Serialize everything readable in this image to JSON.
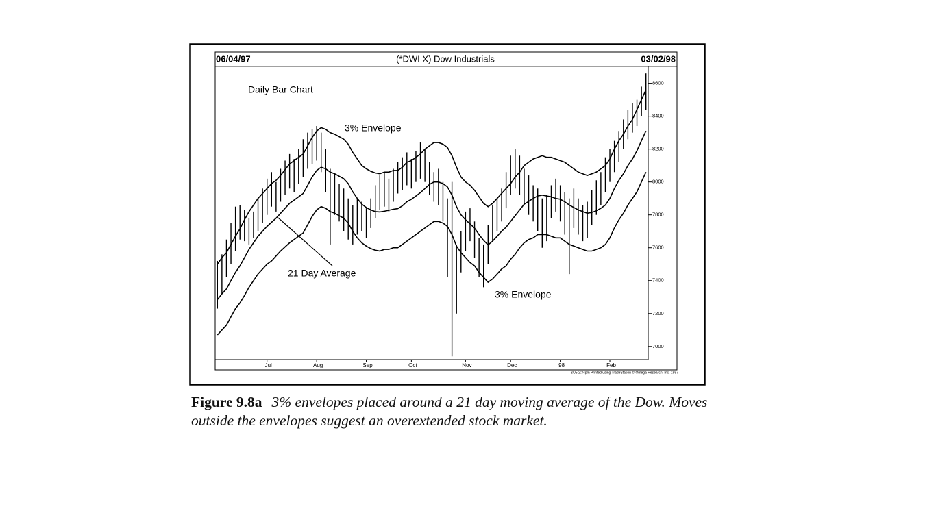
{
  "chart_data": {
    "type": "ohlc",
    "title": "(*DWI X) Dow Industrials",
    "start_date": "06/04/97",
    "end_date": "03/02/98",
    "subtitle": "Daily Bar Chart",
    "footer": "3/05 2:34pm Printed using TradeStation © Omega Research, Inc. 1997",
    "color": "#000000",
    "categories": [
      null,
      null,
      null,
      null,
      null,
      null,
      null,
      null,
      null,
      null,
      null,
      "Jul",
      null,
      null,
      null,
      null,
      null,
      null,
      null,
      null,
      null,
      null,
      "Aug",
      null,
      null,
      null,
      null,
      null,
      null,
      null,
      null,
      null,
      null,
      "Sep",
      null,
      null,
      null,
      null,
      null,
      null,
      null,
      null,
      null,
      "Oct",
      null,
      null,
      null,
      null,
      null,
      null,
      null,
      null,
      null,
      null,
      null,
      "Nov",
      null,
      null,
      null,
      null,
      null,
      null,
      null,
      null,
      null,
      "Dec",
      null,
      null,
      null,
      null,
      null,
      null,
      null,
      null,
      null,
      null,
      "98",
      null,
      null,
      null,
      null,
      null,
      null,
      null,
      null,
      null,
      null,
      "Feb",
      null,
      null,
      null,
      null,
      null,
      null,
      null,
      null
    ],
    "high": [
      7520,
      7560,
      7650,
      7750,
      7850,
      7860,
      7830,
      7780,
      7820,
      7900,
      7960,
      8020,
      8060,
      8000,
      8080,
      8130,
      8170,
      8140,
      8200,
      8260,
      8300,
      8320,
      8340,
      8300,
      8200,
      8080,
      8050,
      7990,
      7960,
      7900,
      7860,
      7900,
      7880,
      7840,
      7900,
      7980,
      8040,
      8060,
      8020,
      8080,
      8120,
      8150,
      8180,
      8140,
      8190,
      8240,
      8200,
      8120,
      8060,
      8080,
      8000,
      7900,
      8000,
      7620,
      7700,
      7820,
      7840,
      7760,
      7660,
      7620,
      7740,
      7860,
      7900,
      7960,
      8060,
      8160,
      8200,
      8160,
      8080,
      8040,
      7980,
      7960,
      7900,
      7920,
      7980,
      8020,
      7980,
      7940,
      7900,
      7960,
      7900,
      7860,
      7880,
      7950,
      8010,
      8060,
      8150,
      8200,
      8250,
      8310,
      8380,
      8440,
      8480,
      8500,
      8580,
      8660
    ],
    "low": [
      7230,
      7320,
      7420,
      7500,
      7580,
      7650,
      7640,
      7620,
      7660,
      7700,
      7750,
      7800,
      7850,
      7820,
      7880,
      7920,
      7960,
      7940,
      7990,
      8030,
      8080,
      8110,
      8130,
      8060,
      7940,
      7620,
      7800,
      7760,
      7700,
      7650,
      7620,
      7680,
      7700,
      7660,
      7720,
      7780,
      7830,
      7850,
      7820,
      7880,
      7930,
      7950,
      7980,
      7960,
      8000,
      8020,
      8000,
      7920,
      7880,
      7860,
      7760,
      7420,
      6940,
      7200,
      7450,
      7580,
      7640,
      7540,
      7420,
      7360,
      7500,
      7640,
      7700,
      7760,
      7840,
      7920,
      7960,
      7920,
      7860,
      7800,
      7760,
      7700,
      7600,
      7640,
      7780,
      7820,
      7760,
      7680,
      7440,
      7720,
      7680,
      7640,
      7660,
      7740,
      7800,
      7860,
      7940,
      8000,
      8060,
      8120,
      8200,
      8260,
      8300,
      8340,
      8400,
      8440
    ],
    "series": [
      {
        "name": "3% Envelope",
        "color": "#000000",
        "values": [
          7500,
          7540,
          7570,
          7620,
          7670,
          7715,
          7770,
          7820,
          7860,
          7900,
          7930,
          7960,
          7990,
          8010,
          8040,
          8075,
          8110,
          8130,
          8150,
          8170,
          8220,
          8270,
          8310,
          8330,
          8320,
          8300,
          8290,
          8275,
          8260,
          8230,
          8180,
          8140,
          8100,
          8080,
          8065,
          8055,
          8050,
          8060,
          8060,
          8070,
          8070,
          8090,
          8120,
          8130,
          8150,
          8170,
          8200,
          8220,
          8240,
          8240,
          8230,
          8210,
          8160,
          8090,
          8030,
          8000,
          7980,
          7950,
          7910,
          7870,
          7850,
          7870,
          7900,
          7930,
          7960,
          7990,
          8030,
          8060,
          8100,
          8120,
          8140,
          8150,
          8160,
          8150,
          8150,
          8140,
          8130,
          8120,
          8100,
          8080,
          8060,
          8050,
          8040,
          8050,
          8060,
          8080,
          8100,
          8140,
          8200,
          8250,
          8290,
          8340,
          8380,
          8440,
          8500,
          8560
        ]
      },
      {
        "name": "21 Day Average",
        "color": "#000000",
        "values": [
          7285,
          7320,
          7350,
          7400,
          7450,
          7490,
          7540,
          7590,
          7630,
          7670,
          7700,
          7730,
          7755,
          7780,
          7810,
          7840,
          7870,
          7890,
          7910,
          7930,
          7980,
          8030,
          8070,
          8090,
          8080,
          8060,
          8050,
          8035,
          8020,
          7990,
          7940,
          7900,
          7865,
          7845,
          7830,
          7820,
          7818,
          7822,
          7828,
          7834,
          7838,
          7855,
          7880,
          7895,
          7915,
          7935,
          7960,
          7985,
          8000,
          8000,
          7990,
          7970,
          7920,
          7850,
          7800,
          7770,
          7745,
          7720,
          7680,
          7645,
          7617,
          7640,
          7670,
          7700,
          7725,
          7760,
          7795,
          7830,
          7865,
          7882,
          7900,
          7915,
          7920,
          7915,
          7910,
          7900,
          7895,
          7880,
          7860,
          7845,
          7830,
          7820,
          7810,
          7815,
          7825,
          7840,
          7860,
          7900,
          7960,
          8010,
          8050,
          8100,
          8140,
          8190,
          8250,
          8310
        ]
      },
      {
        "name": "3% Envelope",
        "color": "#000000",
        "values": [
          7070,
          7100,
          7130,
          7180,
          7230,
          7265,
          7310,
          7360,
          7400,
          7440,
          7470,
          7500,
          7520,
          7550,
          7580,
          7605,
          7630,
          7650,
          7670,
          7690,
          7740,
          7790,
          7830,
          7850,
          7840,
          7820,
          7810,
          7795,
          7780,
          7750,
          7700,
          7660,
          7630,
          7610,
          7595,
          7585,
          7580,
          7590,
          7590,
          7600,
          7600,
          7620,
          7640,
          7660,
          7680,
          7700,
          7720,
          7740,
          7760,
          7760,
          7750,
          7730,
          7680,
          7610,
          7570,
          7540,
          7510,
          7490,
          7450,
          7420,
          7390,
          7410,
          7440,
          7470,
          7490,
          7530,
          7560,
          7600,
          7630,
          7650,
          7660,
          7680,
          7680,
          7680,
          7670,
          7660,
          7660,
          7640,
          7620,
          7610,
          7600,
          7590,
          7580,
          7580,
          7590,
          7600,
          7620,
          7660,
          7720,
          7770,
          7810,
          7860,
          7900,
          7940,
          8000,
          8060
        ]
      }
    ],
    "ylim": [
      6920,
      8690
    ],
    "yticks": [
      7000,
      7200,
      7400,
      7600,
      7800,
      8000,
      8200,
      8400,
      8600
    ]
  },
  "caption": {
    "label": "Figure 9.8a",
    "text": "3% envelopes placed around a 21 day moving average of the Dow. Moves outside the envelopes suggest an overextended stock market."
  }
}
